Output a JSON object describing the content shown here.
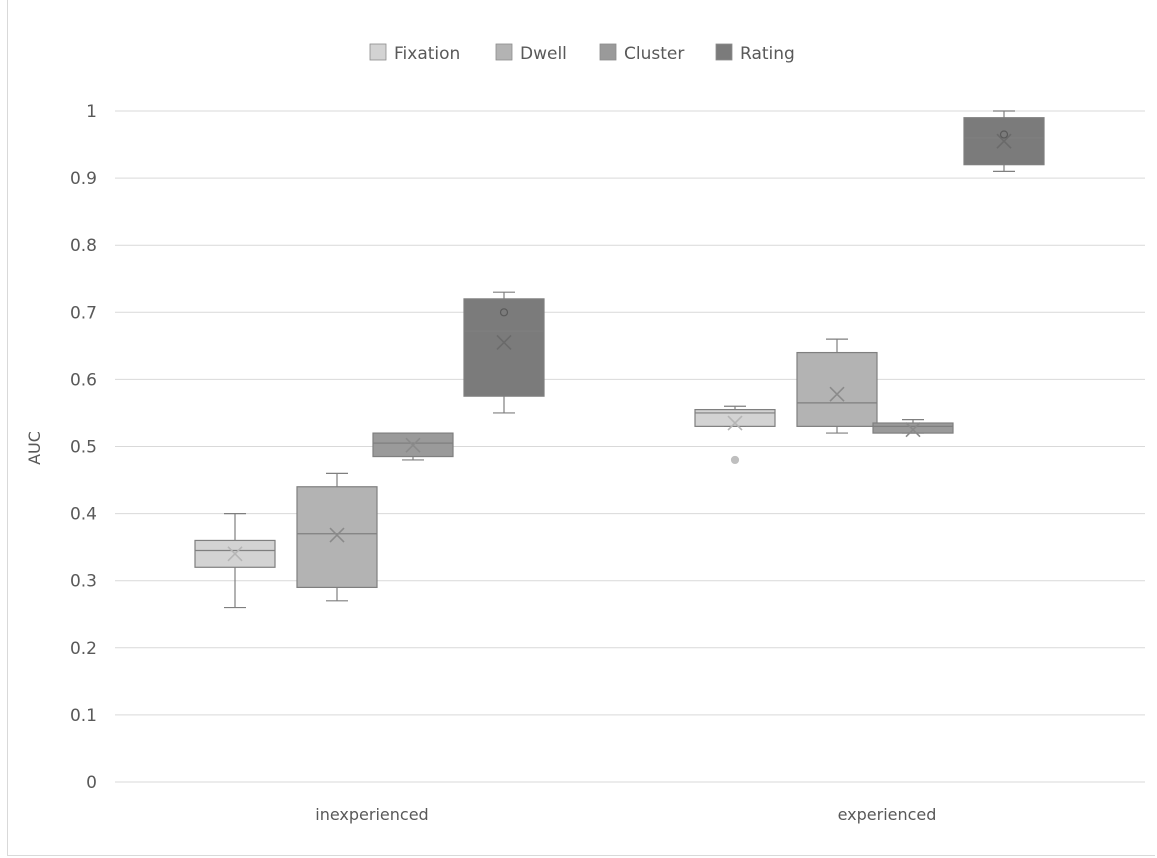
{
  "chart_data": {
    "type": "box",
    "ylabel": "AUC",
    "ylim": [
      0,
      1
    ],
    "yticks": [
      "0",
      "0.1",
      "0.2",
      "0.3",
      "0.4",
      "0.5",
      "0.6",
      "0.7",
      "0.8",
      "0.9",
      "1"
    ],
    "categories": [
      "inexperienced",
      "experienced"
    ],
    "grid": true,
    "legend_position": "top",
    "series": [
      {
        "name": "Fixation",
        "color": "#d3d3d3",
        "boxes": [
          {
            "min": 0.26,
            "q1": 0.32,
            "median": 0.345,
            "q3": 0.36,
            "max": 0.4,
            "mean": 0.34,
            "outliers": []
          },
          {
            "min": 0.53,
            "q1": 0.53,
            "median": 0.55,
            "q3": 0.555,
            "max": 0.56,
            "mean": 0.535,
            "outliers": [
              0.48
            ]
          }
        ]
      },
      {
        "name": "Dwell",
        "color": "#b3b3b3",
        "boxes": [
          {
            "min": 0.27,
            "q1": 0.29,
            "median": 0.37,
            "q3": 0.44,
            "max": 0.46,
            "mean": 0.368,
            "outliers": []
          },
          {
            "min": 0.52,
            "q1": 0.53,
            "median": 0.565,
            "q3": 0.64,
            "max": 0.66,
            "mean": 0.578,
            "outliers": []
          }
        ]
      },
      {
        "name": "Cluster",
        "color": "#9a9a9a",
        "boxes": [
          {
            "min": 0.48,
            "q1": 0.485,
            "median": 0.505,
            "q3": 0.52,
            "max": 0.52,
            "mean": 0.502,
            "outliers": []
          },
          {
            "min": 0.52,
            "q1": 0.52,
            "median": 0.53,
            "q3": 0.535,
            "max": 0.54,
            "mean": 0.525,
            "outliers": []
          }
        ]
      },
      {
        "name": "Rating",
        "color": "#7b7b7b",
        "boxes": [
          {
            "min": 0.55,
            "q1": 0.575,
            "median": 0.672,
            "q3": 0.72,
            "max": 0.73,
            "mean": 0.655,
            "outliers": [
              0.7
            ]
          },
          {
            "min": 0.91,
            "q1": 0.92,
            "median": 0.96,
            "q3": 0.99,
            "max": 1.0,
            "mean": 0.955,
            "outliers": [
              0.965
            ]
          }
        ]
      }
    ]
  }
}
